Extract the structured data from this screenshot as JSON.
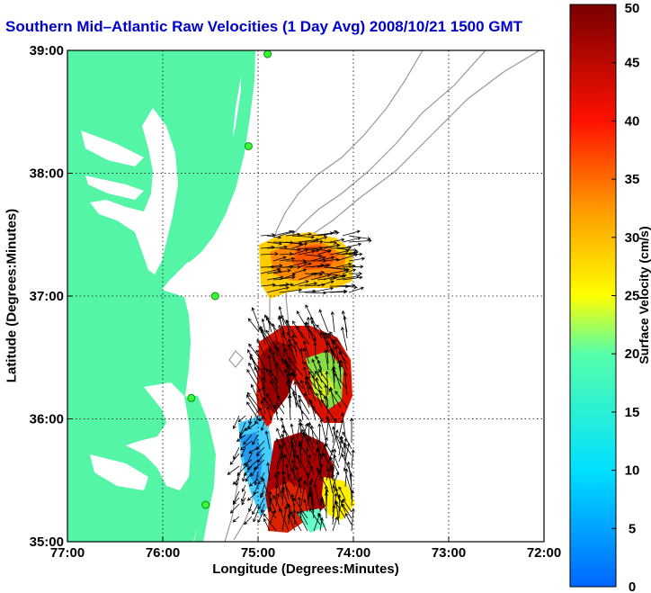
{
  "title": "Southern Mid–Atlantic Raw Velocities (1 Day Avg) 2008/10/21 1500 GMT",
  "chart_data": {
    "type": "map_vector_field",
    "xlabel": "Longitude (Degrees:Minutes)",
    "ylabel": "Latitude (Degrees:Minutes)",
    "xlim": [
      -77,
      -72
    ],
    "ylim": [
      35,
      39
    ],
    "xticks": [
      "77:00",
      "76:00",
      "75:00",
      "74:00",
      "73:00",
      "72:00"
    ],
    "yticks": [
      "35:00",
      "36:00",
      "37:00",
      "38:00",
      "39:00"
    ],
    "grid": true,
    "colorbar": {
      "label": "Surface Velocity (cm/s)",
      "range": [
        0,
        50
      ],
      "ticks": [
        "0",
        "5",
        "10",
        "15",
        "20",
        "25",
        "30",
        "35",
        "40",
        "45",
        "50"
      ]
    },
    "stations": [
      {
        "lon": -74.9,
        "lat": 38.97
      },
      {
        "lon": -75.1,
        "lat": 38.22
      },
      {
        "lon": -75.45,
        "lat": 37.0
      },
      {
        "lon": -75.7,
        "lat": 36.17
      },
      {
        "lon": -75.55,
        "lat": 35.3
      }
    ]
  },
  "colors": {
    "land": "#55f5a8",
    "title": "#0000cc",
    "station": "#33ff33"
  }
}
